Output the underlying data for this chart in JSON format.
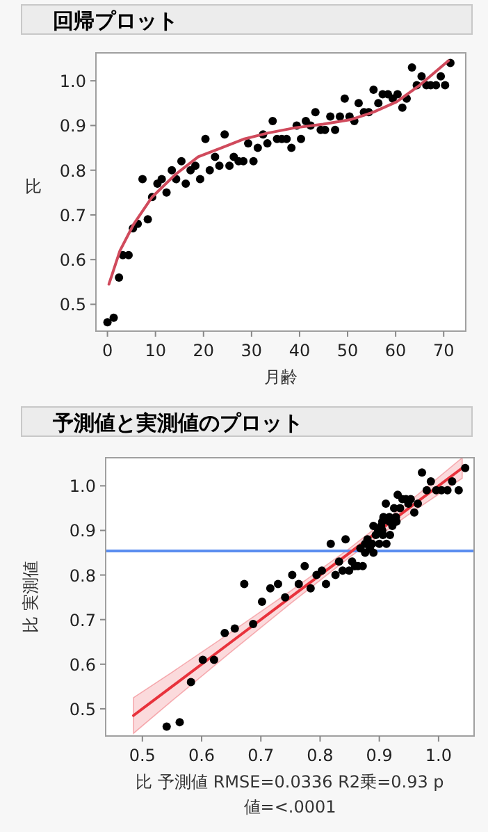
{
  "chart_data": [
    {
      "type": "scatter",
      "title": "回帰プロット",
      "xlabel": "月齢",
      "ylabel": "比",
      "xlim": [
        -2.4,
        74.6
      ],
      "ylim": [
        0.44,
        1.0625
      ],
      "xticks": [
        0,
        10,
        20,
        30,
        40,
        50,
        60,
        70
      ],
      "yticks": [
        0.5,
        0.6,
        0.7,
        0.8,
        0.9,
        {
          "value": 1,
          "label": "1.0"
        }
      ],
      "grid": false,
      "series": [
        {
          "type": "scatter",
          "marker": "circle",
          "color": "#000000",
          "x": [
            0,
            1.3,
            2.4,
            3.2,
            4.4,
            5.3,
            6.3,
            7.3,
            8.4,
            9.3,
            10.4,
            11.3,
            12.3,
            13.4,
            14.3,
            15.4,
            16.3,
            17.3,
            18.3,
            19.3,
            20.4,
            21.3,
            22.4,
            23.3,
            24.4,
            25.4,
            26.3,
            27.3,
            28.3,
            29.3,
            30.4,
            31.3,
            32.4,
            33.3,
            34.4,
            35.3,
            36.3,
            37.3,
            38.3,
            39.4,
            40.3,
            41.3,
            42.3,
            43.3,
            44.4,
            45.3,
            46.4,
            47.4,
            48.4,
            49.4,
            50.4,
            51.4,
            52.3,
            53.4,
            54.4,
            55.4,
            56.4,
            57.3,
            58.4,
            59.4,
            60.4,
            61.4,
            62.3,
            63.4,
            64.4,
            65.4,
            66.4,
            67.3,
            68.4,
            69.4,
            70.3,
            71.4
          ],
          "values": [
            0.46,
            0.47,
            0.56,
            0.61,
            0.61,
            0.67,
            0.68,
            0.78,
            0.69,
            0.74,
            0.77,
            0.78,
            0.75,
            0.8,
            0.78,
            0.82,
            0.77,
            0.8,
            0.81,
            0.78,
            0.87,
            0.8,
            0.83,
            0.81,
            0.88,
            0.81,
            0.83,
            0.82,
            0.82,
            0.86,
            0.82,
            0.85,
            0.88,
            0.86,
            0.91,
            0.87,
            0.87,
            0.87,
            0.85,
            0.9,
            0.87,
            0.91,
            0.9,
            0.93,
            0.89,
            0.89,
            0.92,
            0.89,
            0.92,
            0.96,
            0.92,
            0.91,
            0.95,
            0.93,
            0.93,
            0.98,
            0.95,
            0.97,
            0.97,
            0.96,
            0.97,
            0.94,
            0.96,
            1.03,
            0.99,
            1.01,
            0.99,
            0.99,
            0.99,
            1.01,
            0.99,
            1.04
          ]
        },
        {
          "type": "line",
          "color": "#d04a5c",
          "x": [
            0.3,
            2.6,
            5.5,
            9.3,
            14.1,
            18.9,
            23.7,
            28.5,
            33.3,
            39.1,
            44.9,
            50.6,
            55.4,
            60.2,
            65,
            71
          ],
          "values": [
            0.545,
            0.62,
            0.68,
            0.74,
            0.79,
            0.83,
            0.85,
            0.87,
            0.883,
            0.895,
            0.903,
            0.913,
            0.93,
            0.953,
            0.99,
            1.045
          ]
        }
      ]
    },
    {
      "type": "scatter",
      "title": "予測値と実測値のプロット",
      "xlabel": "比 予測値 RMSE=0.0336 R2乗=0.93 p 値=<.0001",
      "ylabel": "比 実測値",
      "xlim": [
        0.438,
        1.06
      ],
      "ylim": [
        0.439,
        1.063
      ],
      "xticks": [
        0.5,
        0.6,
        0.7,
        0.8,
        0.9,
        {
          "value": 1,
          "label": "1.0"
        }
      ],
      "yticks": [
        0.5,
        0.6,
        0.7,
        0.8,
        0.9,
        {
          "value": 1,
          "label": "1.0"
        }
      ],
      "grid": false,
      "ref_lines": [
        {
          "axis": "y",
          "value": 0.854,
          "color": "#5b8def"
        }
      ],
      "series": [
        {
          "type": "line",
          "color": "#e8323c",
          "x": [
            0.485,
            0.55,
            0.65,
            0.75,
            0.85,
            0.95,
            1.04
          ],
          "values": [
            0.485,
            0.55,
            0.65,
            0.75,
            0.85,
            0.95,
            1.04
          ],
          "lower": [
            0.445,
            0.518,
            0.628,
            0.736,
            0.84,
            0.936,
            1.017
          ],
          "upper": [
            0.525,
            0.582,
            0.672,
            0.764,
            0.86,
            0.964,
            1.063
          ]
        },
        {
          "type": "scatter",
          "marker": "circle",
          "color": "#000000",
          "x": [
            0.541,
            0.563,
            0.582,
            0.602,
            0.621,
            0.639,
            0.656,
            0.672,
            0.687,
            0.702,
            0.716,
            0.729,
            0.741,
            0.753,
            0.764,
            0.774,
            0.784,
            0.794,
            0.803,
            0.81,
            0.818,
            0.826,
            0.832,
            0.838,
            0.843,
            0.849,
            0.854,
            0.859,
            0.864,
            0.868,
            0.872,
            0.876,
            0.88,
            0.884,
            0.89,
            0.876,
            0.888,
            0.9,
            0.89,
            0.898,
            0.912,
            0.903,
            0.905,
            0.907,
            0.894,
            0.906,
            0.905,
            0.918,
            0.917,
            0.911,
            0.929,
            0.922,
            0.925,
            0.928,
            0.917,
            0.931,
            0.935,
            0.939,
            0.945,
            0.949,
            0.953,
            0.959,
            0.965,
            0.972,
            0.98,
            0.987,
            0.996,
            1.005,
            1.015,
            1.023,
            1.034,
            1.045
          ],
          "values": [
            0.46,
            0.47,
            0.56,
            0.61,
            0.61,
            0.67,
            0.68,
            0.78,
            0.69,
            0.74,
            0.77,
            0.78,
            0.75,
            0.8,
            0.78,
            0.82,
            0.77,
            0.8,
            0.81,
            0.78,
            0.87,
            0.8,
            0.83,
            0.81,
            0.88,
            0.81,
            0.83,
            0.82,
            0.82,
            0.86,
            0.82,
            0.85,
            0.88,
            0.86,
            0.91,
            0.87,
            0.87,
            0.87,
            0.85,
            0.9,
            0.87,
            0.91,
            0.9,
            0.93,
            0.89,
            0.89,
            0.92,
            0.89,
            0.92,
            0.96,
            0.92,
            0.91,
            0.95,
            0.93,
            0.93,
            0.98,
            0.95,
            0.97,
            0.97,
            0.96,
            0.97,
            0.94,
            0.96,
            1.03,
            0.99,
            1.01,
            0.99,
            0.99,
            0.99,
            1.01,
            0.99,
            1.04
          ]
        }
      ]
    }
  ]
}
